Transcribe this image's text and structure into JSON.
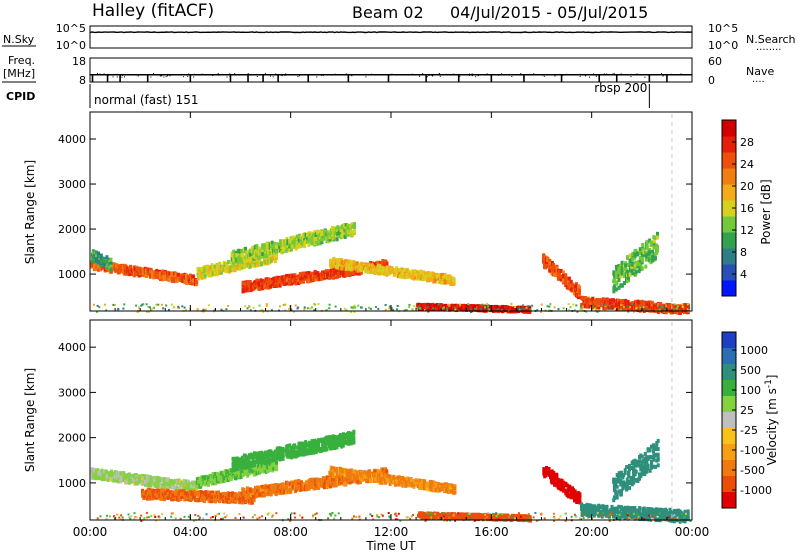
{
  "header": {
    "station": "Halley (fitACF)",
    "beam": "Beam 02",
    "date_range": "04/Jul/2015 - 05/Jul/2015"
  },
  "chart_data": [
    {
      "panel": "nsky-nsearch",
      "type": "line",
      "left_label": "N.Sky",
      "right_label": "N.Search",
      "left_ticks": [
        "10^5",
        "10^0"
      ],
      "right_ticks": [
        "10^5",
        "10^0"
      ],
      "style": "log",
      "approx_value": 5000
    },
    {
      "panel": "freq-nave",
      "type": "scatter",
      "left_label_line1": "Freq.",
      "left_label_line2": "[MHz]",
      "right_label": "Nave",
      "left_ticks": [
        18,
        8
      ],
      "right_ticks": [
        60,
        0
      ],
      "ylim_freq": [
        8,
        18
      ],
      "ylim_nave": [
        0,
        60
      ],
      "approx_freq_mhz": 11,
      "nave_dips_hours": [
        0.1,
        0.7,
        1.2,
        2.3,
        4.0,
        5.6,
        6.3,
        6.9,
        7.5,
        8.7,
        10.3,
        11.9,
        13.4,
        14.7,
        16.0,
        17.3,
        18.8,
        20.3,
        21.0,
        22.3,
        23.0
      ]
    },
    {
      "panel": "cpid",
      "type": "table",
      "label": "CPID",
      "segments": [
        {
          "start_hour": 0,
          "end_hour": 21.0,
          "name": "normal (fast) 151"
        },
        {
          "start_hour": 21.0,
          "end_hour": 23.2,
          "name": "rbsp 200"
        }
      ]
    },
    {
      "panel": "power",
      "type": "heatmap",
      "ylabel": "Slant Range [km]",
      "ylim": [
        180,
        4600
      ],
      "yticks": [
        1000,
        2000,
        3000,
        4000
      ],
      "colorbar_label": "Power [dB]",
      "colorbar_range": [
        0,
        32
      ],
      "colorbar_ticks": [
        4,
        8,
        12,
        16,
        20,
        24,
        28
      ],
      "colorbar_colors": [
        "#0016ff",
        "#2a4fb4",
        "#2e7e86",
        "#33a24f",
        "#73c93a",
        "#d7d11e",
        "#f3ab18",
        "#f07f12",
        "#ee4f0c",
        "#e51e0a",
        "#d00000"
      ],
      "bands": [
        {
          "t0": 0.0,
          "t1": 4.2,
          "r0": 1250,
          "r1": 900,
          "w": 180,
          "p": 24
        },
        {
          "t0": 0.0,
          "t1": 0.8,
          "r0": 1450,
          "r1": 1250,
          "w": 250,
          "p": 10
        },
        {
          "t0": 4.2,
          "t1": 7.4,
          "r0": 1050,
          "r1": 1450,
          "w": 230,
          "p": 16
        },
        {
          "t0": 5.6,
          "t1": 10.5,
          "r0": 1400,
          "r1": 2050,
          "w": 280,
          "p": 14
        },
        {
          "t0": 6.0,
          "t1": 11.8,
          "r0": 750,
          "r1": 1250,
          "w": 200,
          "p": 26
        },
        {
          "t0": 9.5,
          "t1": 14.5,
          "r0": 1300,
          "r1": 900,
          "w": 180,
          "p": 18
        },
        {
          "t0": 13.0,
          "t1": 17.5,
          "r0": 320,
          "r1": 250,
          "w": 100,
          "p": 29
        },
        {
          "t0": 18.0,
          "t1": 19.5,
          "r0": 1350,
          "r1": 620,
          "w": 260,
          "p": 25
        },
        {
          "t0": 19.5,
          "t1": 23.8,
          "r0": 420,
          "r1": 260,
          "w": 200,
          "p": 26
        },
        {
          "t0": 20.8,
          "t1": 22.6,
          "r0": 900,
          "r1": 1700,
          "w": 550,
          "p": 12
        }
      ]
    },
    {
      "panel": "velocity",
      "type": "heatmap",
      "ylabel": "Slant Range [km]",
      "ylim": [
        180,
        4600
      ],
      "yticks": [
        1000,
        2000,
        3000,
        4000
      ],
      "colorbar_label": "Velocity [m s",
      "colorbar_label_exp": "-1",
      "colorbar_label_end": "]",
      "colorbar_ticks": [
        "1000",
        "500",
        "100",
        "25",
        "-25",
        "-100",
        "-500",
        "-1000"
      ],
      "colorbar_colors": [
        "#1d3fc3",
        "#2a6fb0",
        "#2e8f7c",
        "#39b03e",
        "#84d23f",
        "#bfbfbf",
        "#f8c21a",
        "#f49f14",
        "#f07a10",
        "#ec4e0a",
        "#e00000"
      ],
      "bands": [
        {
          "t0": 0.0,
          "t1": 4.2,
          "r0": 1250,
          "r1": 950,
          "w": 200,
          "v": 60
        },
        {
          "t0": 4.2,
          "t1": 7.4,
          "r0": 1050,
          "r1": 1450,
          "w": 220,
          "v": 90
        },
        {
          "t0": 5.6,
          "t1": 10.5,
          "r0": 1450,
          "r1": 2050,
          "w": 280,
          "v": 150
        },
        {
          "t0": 2.0,
          "t1": 6.5,
          "r0": 800,
          "r1": 700,
          "w": 200,
          "v": -100
        },
        {
          "t0": 6.0,
          "t1": 11.8,
          "r0": 800,
          "r1": 1250,
          "w": 220,
          "v": -80
        },
        {
          "t0": 9.5,
          "t1": 14.5,
          "r0": 1300,
          "r1": 900,
          "w": 180,
          "v": -60
        },
        {
          "t0": 13.0,
          "t1": 17.5,
          "r0": 330,
          "r1": 260,
          "w": 100,
          "v": -150
        },
        {
          "t0": 18.0,
          "t1": 19.5,
          "r0": 1350,
          "r1": 650,
          "w": 260,
          "v": -500
        },
        {
          "t0": 19.5,
          "t1": 23.8,
          "r0": 450,
          "r1": 300,
          "w": 250,
          "v": 300
        },
        {
          "t0": 20.8,
          "t1": 22.6,
          "r0": 900,
          "r1": 1700,
          "w": 550,
          "v": 400
        }
      ]
    }
  ],
  "xaxis": {
    "label": "Time UT",
    "xlim": [
      0,
      24
    ],
    "tick_labels": [
      "00:00",
      "04:00",
      "08:00",
      "12:00",
      "16:00",
      "20:00",
      "00:00"
    ]
  }
}
